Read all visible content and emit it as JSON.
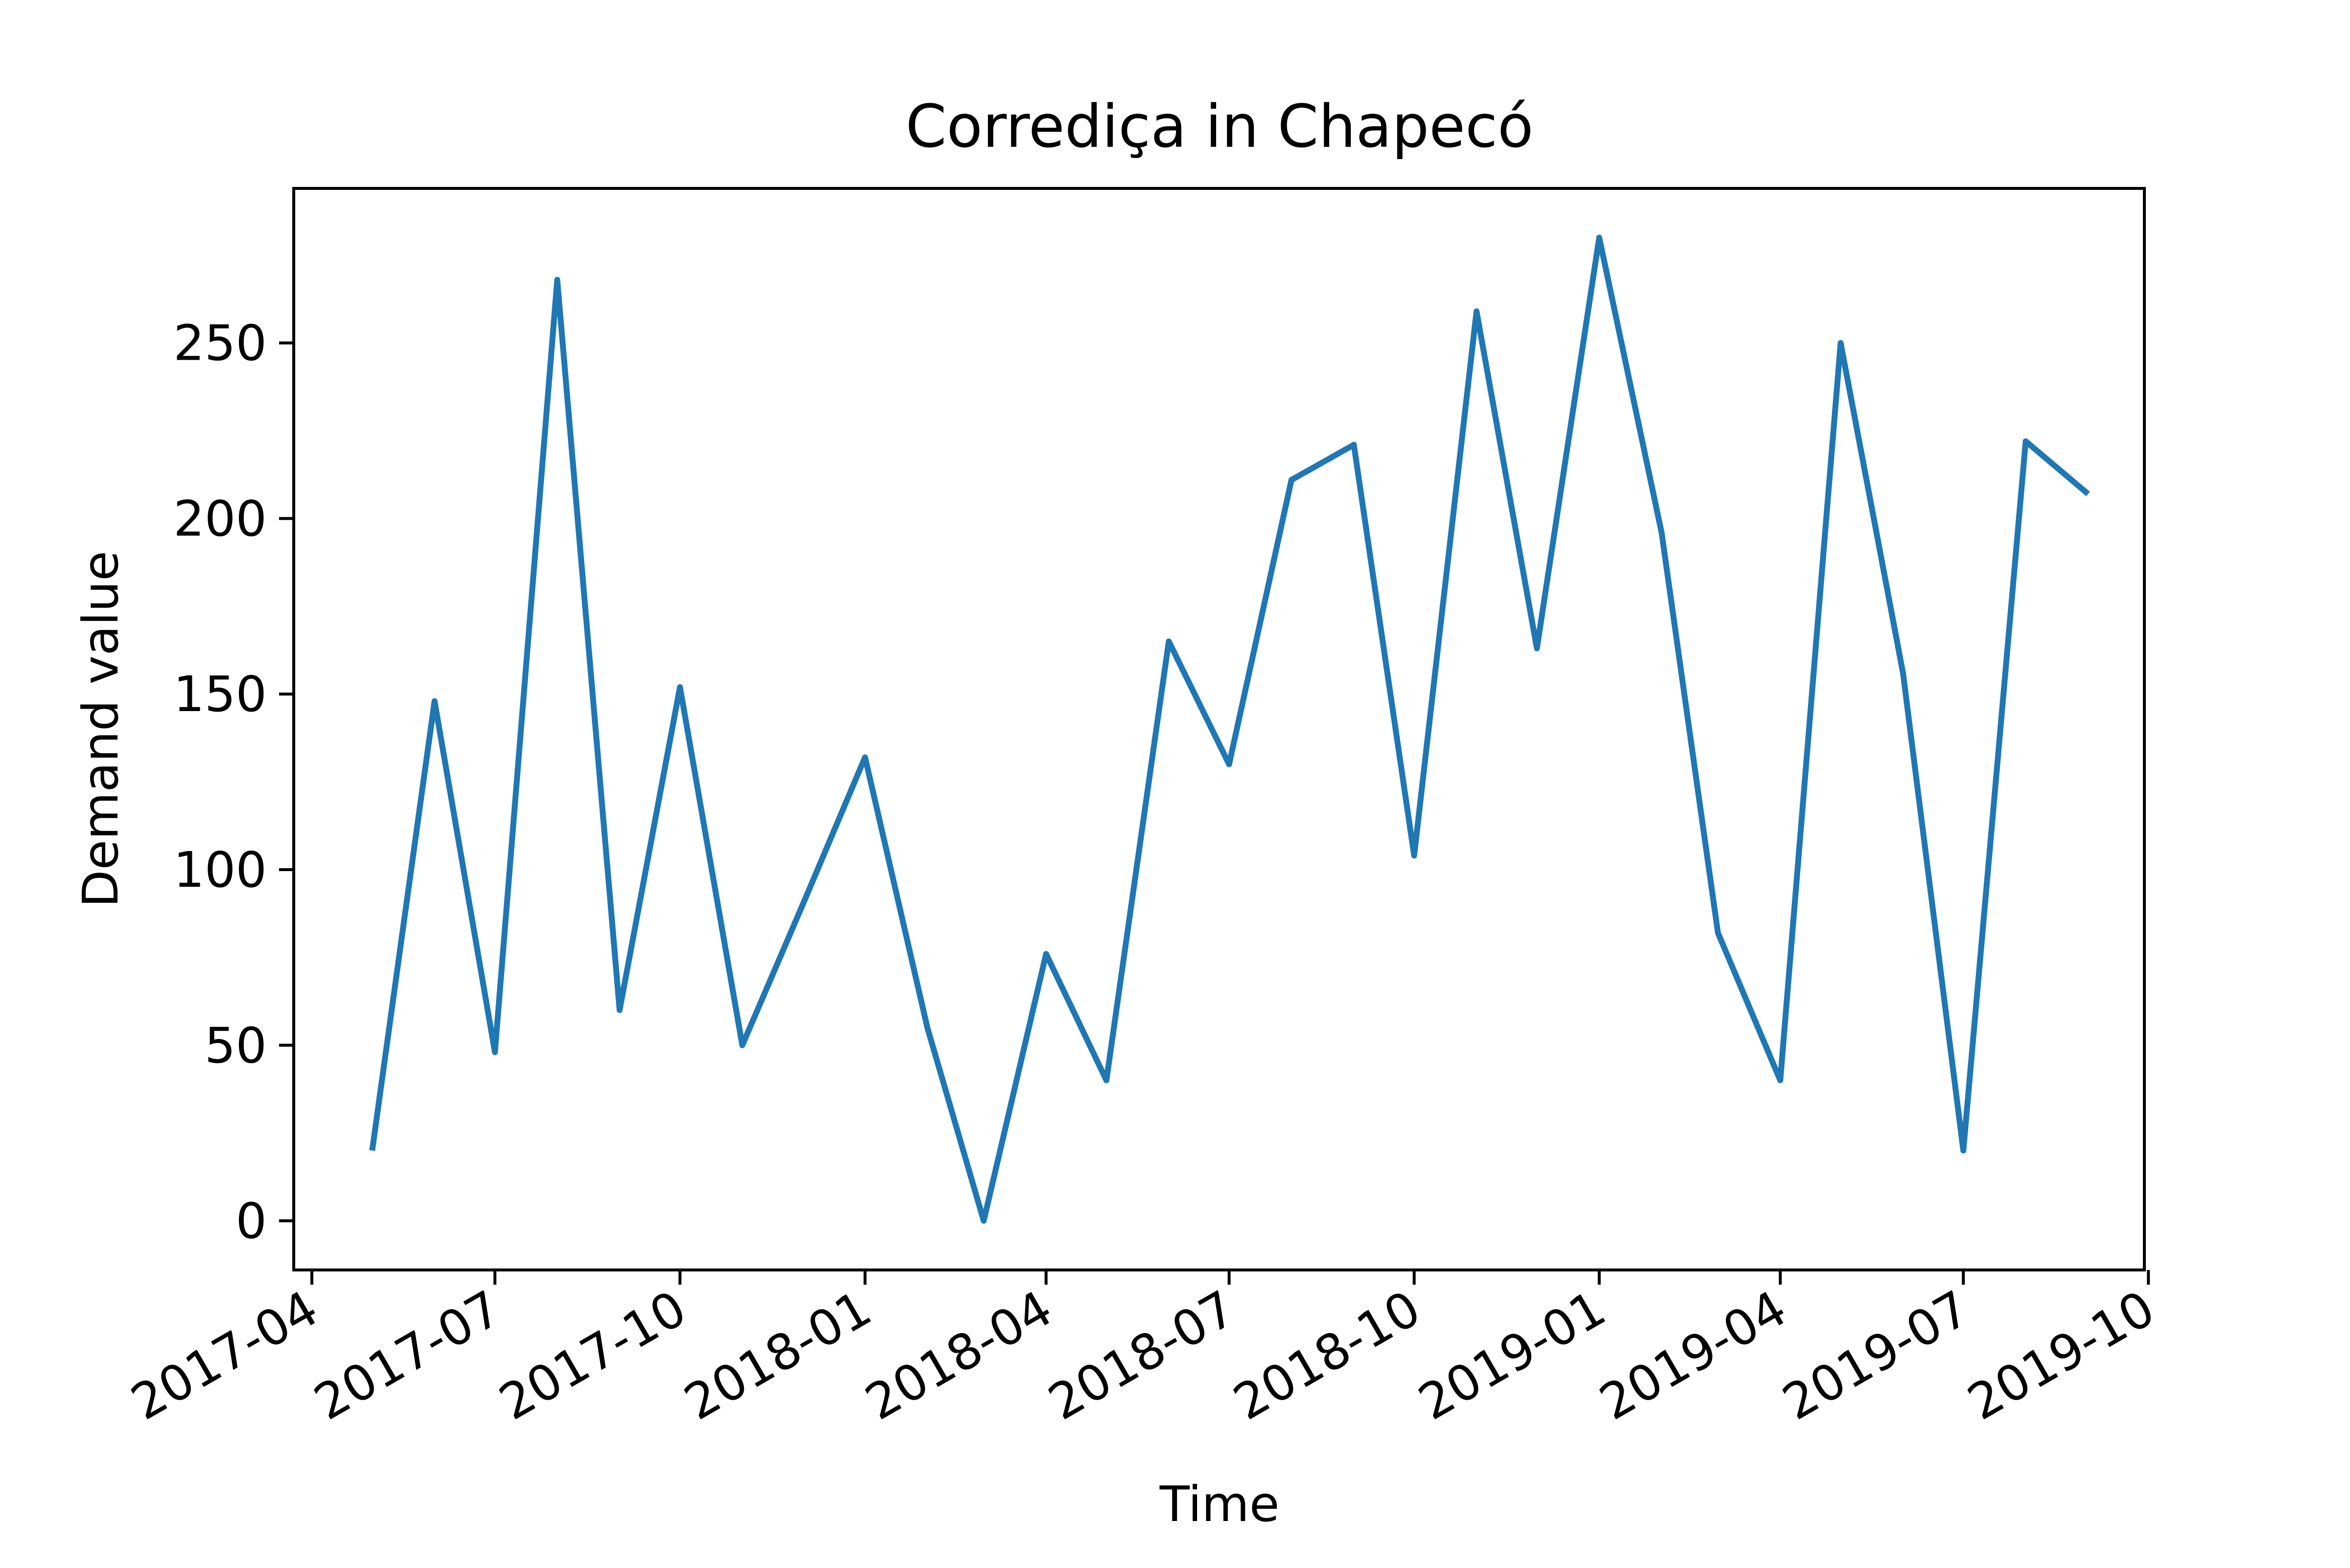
{
  "chart_data": {
    "type": "line",
    "title": "Corrediça in Chapecó",
    "xlabel": "Time",
    "ylabel": "Demand value",
    "x_tick_labels": [
      "2017-04",
      "2017-07",
      "2017-10",
      "2018-01",
      "2018-04",
      "2018-07",
      "2018-10",
      "2019-01",
      "2019-04",
      "2019-07",
      "2019-10"
    ],
    "y_tick_labels": [
      "0",
      "50",
      "100",
      "150",
      "200",
      "250"
    ],
    "y_ticks": [
      0,
      50,
      100,
      150,
      200,
      250
    ],
    "ylim": [
      -14,
      294
    ],
    "xlim": [
      "2017-03-23",
      "2019-09-29"
    ],
    "grid": false,
    "legend": "none",
    "series": [
      {
        "color": "#1f77b4",
        "x": [
          "2017-05-01",
          "2017-06-01",
          "2017-07-01",
          "2017-08-01",
          "2017-09-01",
          "2017-10-01",
          "2017-11-01",
          "2017-12-01",
          "2018-01-01",
          "2018-02-01",
          "2018-03-01",
          "2018-04-01",
          "2018-05-01",
          "2018-06-01",
          "2018-07-01",
          "2018-08-01",
          "2018-09-01",
          "2018-10-01",
          "2018-11-01",
          "2018-12-01",
          "2019-01-01",
          "2019-02-01",
          "2019-03-01",
          "2019-04-01",
          "2019-05-01",
          "2019-06-01",
          "2019-07-01",
          "2019-08-01",
          "2019-09-01"
        ],
        "values": [
          20,
          148,
          48,
          268,
          60,
          152,
          50,
          90,
          132,
          55,
          0,
          76,
          40,
          165,
          130,
          211,
          221,
          104,
          259,
          163,
          280,
          196,
          82,
          40,
          250,
          156,
          20,
          222,
          207
        ]
      }
    ]
  }
}
